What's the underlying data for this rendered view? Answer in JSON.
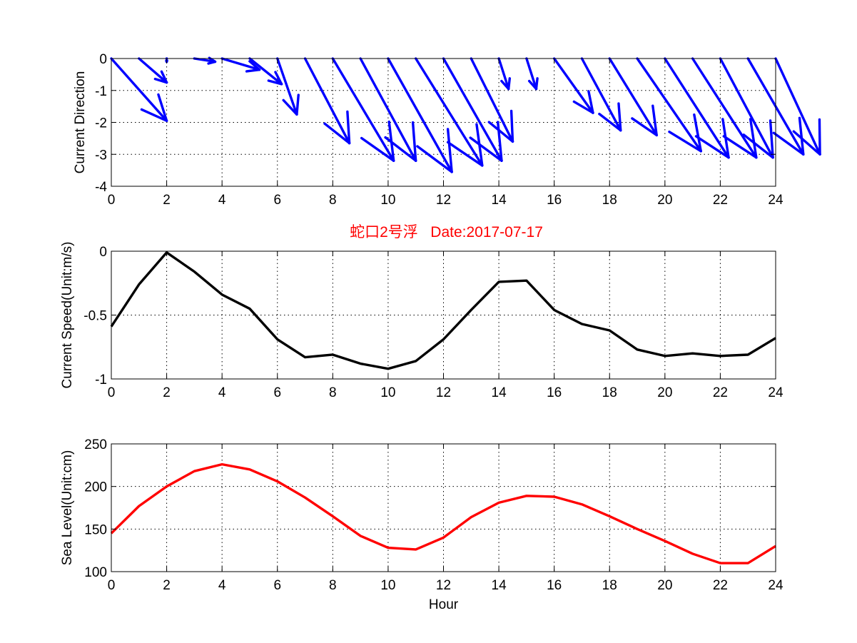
{
  "chart_data": [
    {
      "type": "quiver",
      "ylabel": "Current Direction",
      "xlim": [
        0,
        24
      ],
      "ylim": [
        -4,
        0
      ],
      "xticks": [
        0,
        2,
        4,
        6,
        8,
        10,
        12,
        14,
        16,
        18,
        20,
        22,
        24
      ],
      "yticks": [
        0,
        -1,
        -2,
        -3,
        -4
      ],
      "grid": true,
      "color": "#0000ff",
      "x": [
        0,
        1,
        2,
        3,
        4,
        5,
        6,
        7,
        8,
        9,
        10,
        11,
        12,
        13,
        14,
        15,
        16,
        17,
        18,
        19,
        20,
        21,
        22,
        23,
        24
      ],
      "u": [
        2.0,
        1.0,
        0.0,
        0.75,
        1.35,
        1.15,
        0.7,
        1.6,
        2.2,
        2.0,
        2.3,
        2.4,
        2.1,
        1.5,
        0.35,
        0.35,
        1.4,
        1.4,
        1.7,
        2.3,
        2.3,
        2.3,
        1.9,
        2.0,
        1.6
      ],
      "v": [
        -1.95,
        -0.75,
        -0.1,
        -0.1,
        -0.35,
        -0.8,
        -1.75,
        -2.65,
        -3.2,
        -3.2,
        -3.55,
        -3.35,
        -3.2,
        -2.6,
        -0.95,
        -0.95,
        -1.7,
        -2.25,
        -2.4,
        -2.9,
        -3.1,
        -3.1,
        -3.1,
        -3.0,
        -3.0
      ]
    },
    {
      "type": "line",
      "title": "蛇口2号浮   Date:2017-07-17",
      "ylabel": "Current Speed(Unit:m/s)",
      "xlim": [
        0,
        24
      ],
      "ylim": [
        -1,
        0
      ],
      "xticks": [
        0,
        2,
        4,
        6,
        8,
        10,
        12,
        14,
        16,
        18,
        20,
        22,
        24
      ],
      "yticks": [
        0,
        -0.5,
        -1
      ],
      "ytick_labels": [
        "0",
        "-0.5",
        "-1"
      ],
      "grid": true,
      "color": "#000000",
      "x": [
        0,
        1,
        2,
        3,
        4,
        5,
        6,
        7,
        8,
        9,
        10,
        11,
        12,
        13,
        14,
        15,
        16,
        17,
        18,
        19,
        20,
        21,
        22,
        23,
        24
      ],
      "y": [
        -0.59,
        -0.26,
        -0.01,
        -0.16,
        -0.34,
        -0.45,
        -0.69,
        -0.83,
        -0.81,
        -0.88,
        -0.92,
        -0.86,
        -0.69,
        -0.46,
        -0.24,
        -0.23,
        -0.46,
        -0.57,
        -0.62,
        -0.77,
        -0.82,
        -0.8,
        -0.82,
        -0.81,
        -0.68
      ]
    },
    {
      "type": "line",
      "xlabel": "Hour",
      "ylabel": "Sea Level(Unit:cm)",
      "xlim": [
        0,
        24
      ],
      "ylim": [
        100,
        250
      ],
      "xticks": [
        0,
        2,
        4,
        6,
        8,
        10,
        12,
        14,
        16,
        18,
        20,
        22,
        24
      ],
      "yticks": [
        100,
        150,
        200,
        250
      ],
      "grid": true,
      "color": "#ff0000",
      "x": [
        0,
        1,
        2,
        3,
        4,
        5,
        6,
        7,
        8,
        9,
        10,
        11,
        12,
        13,
        14,
        15,
        16,
        17,
        18,
        19,
        20,
        21,
        22,
        23,
        24
      ],
      "y": [
        145,
        177,
        200,
        218,
        226,
        220,
        206,
        187,
        165,
        142,
        128,
        126,
        140,
        164,
        181,
        189,
        188,
        179,
        165,
        150,
        136,
        121,
        110,
        110,
        130
      ]
    }
  ]
}
